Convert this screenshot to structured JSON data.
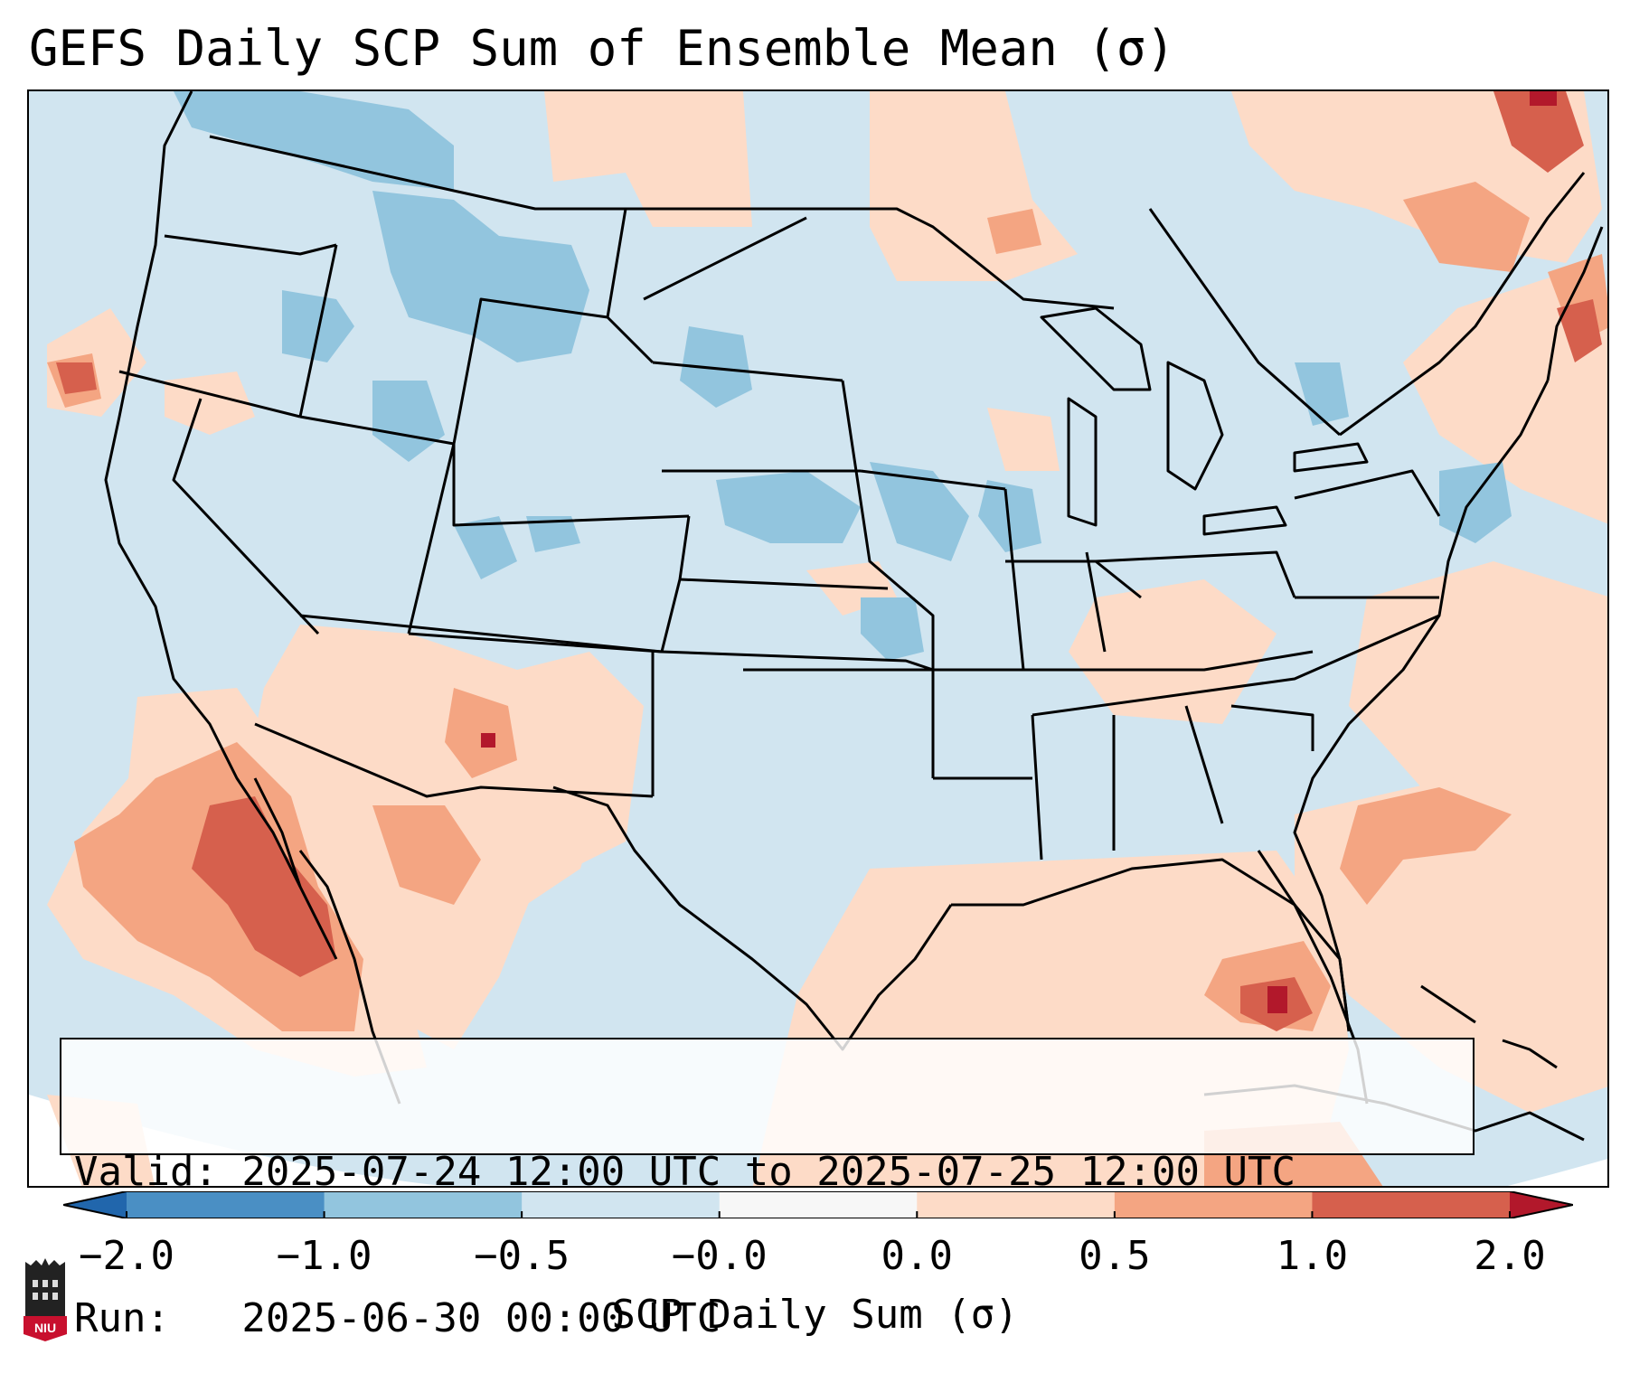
{
  "title": "GEFS Daily SCP Sum of Ensemble Mean (σ)",
  "info_box": {
    "valid_line": "Valid: 2025-07-24 12:00 UTC to 2025-07-25 12:00 UTC",
    "run_line": "Run:   2025-06-30 00:00 UTC"
  },
  "colorbar": {
    "label": "SCP Daily Sum (σ)",
    "ticks": [
      "−2.0",
      "−1.0",
      "−0.5",
      "−0.0",
      "0.0",
      "0.5",
      "1.0",
      "2.0"
    ],
    "bins": [
      {
        "from": -2.0,
        "to": -1.0,
        "color": "#4a8fc4"
      },
      {
        "from": -1.0,
        "to": -0.5,
        "color": "#92c5de"
      },
      {
        "from": -0.5,
        "to": -0.0,
        "color": "#d1e5f0"
      },
      {
        "from": -0.0,
        "to": 0.0,
        "color": "#f7f7f7"
      },
      {
        "from": 0.0,
        "to": 0.5,
        "color": "#fddbc7"
      },
      {
        "from": 0.5,
        "to": 1.0,
        "color": "#f4a582"
      },
      {
        "from": 1.0,
        "to": 2.0,
        "color": "#d6604d"
      }
    ],
    "under_color": "#2166ac",
    "over_color": "#b2182b"
  },
  "logo": {
    "text": "NIU",
    "color": "#c8102e"
  },
  "colors": {
    "base_field": "#d1e5f0",
    "border": "#000000"
  }
}
